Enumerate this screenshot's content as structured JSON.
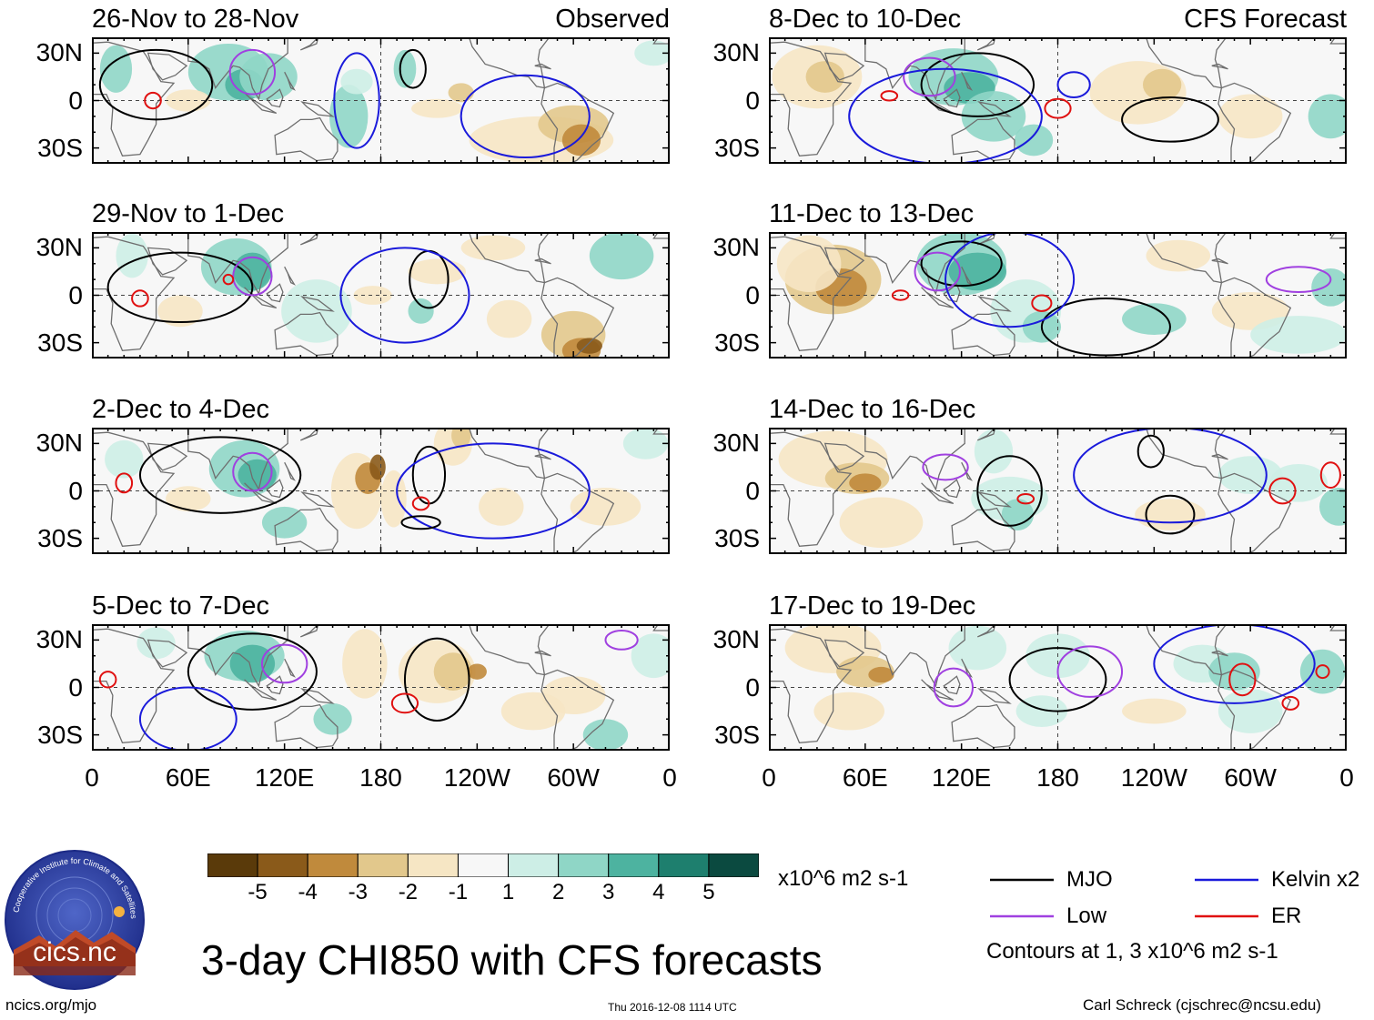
{
  "figure": {
    "title": "3-day CHI850 with CFS forecasts",
    "footer_left": "ncics.org/mjo",
    "footer_center": "Thu 2016-12-08 1114 UTC",
    "footer_right": "Carl Schreck (cjschrec@ncsu.edu)",
    "logo_ring_text": "Cooperative Institute for Climate and Satellites",
    "logo_text": "cics.nc"
  },
  "chart_data": {
    "type": "map-panels",
    "variable": "3-day CHI850 (850-hPa velocity potential) anomaly",
    "lat_ticks": [
      "30N",
      "0",
      "30S"
    ],
    "lon_ticks": [
      "0",
      "60E",
      "120E",
      "180",
      "120W",
      "60W",
      "0"
    ],
    "lat_range": [
      -40,
      40
    ],
    "lon_range": [
      0,
      360
    ],
    "columns": [
      {
        "label": "Observed",
        "panels": [
          {
            "title": "26-Nov to 28-Nov"
          },
          {
            "title": "29-Nov to 1-Dec"
          },
          {
            "title": "2-Dec to 4-Dec"
          },
          {
            "title": "5-Dec to 7-Dec"
          }
        ]
      },
      {
        "label": "CFS Forecast",
        "panels": [
          {
            "title": "8-Dec to 10-Dec"
          },
          {
            "title": "11-Dec to 13-Dec"
          },
          {
            "title": "14-Dec to 16-Dec"
          },
          {
            "title": "17-Dec to 19-Dec"
          }
        ]
      }
    ],
    "colorbar": {
      "units": "x10^6 m2 s-1",
      "tick_labels": [
        "-5",
        "-4",
        "-3",
        "-2",
        "-1",
        "1",
        "2",
        "3",
        "4",
        "5"
      ],
      "colors": [
        "#5a3a0a",
        "#8a5a1a",
        "#c08a3c",
        "#e2c88c",
        "#f6e6c4",
        "#f7f7f7",
        "#cdeee6",
        "#8fd6c6",
        "#4db3a0",
        "#1e7f6e",
        "#0b4a40"
      ]
    },
    "legend": [
      {
        "name": "MJO",
        "color": "#000000"
      },
      {
        "name": "Kelvin x2",
        "color": "#1a1adb"
      },
      {
        "name": "Low",
        "color": "#a040e0"
      },
      {
        "name": "ER",
        "color": "#e01010"
      }
    ],
    "contour_note": "Contours at 1, 3 x10^6 m2 s-1"
  }
}
